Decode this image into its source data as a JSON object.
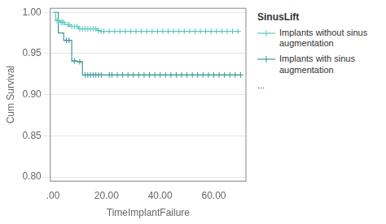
{
  "chart_data": {
    "type": "step",
    "xlabel": "TimeImplantFailure",
    "ylabel": "Cum Survival",
    "legend_title": "SinusLift",
    "legend_note": "...",
    "legend": "right",
    "grid": "y",
    "xlim": [
      -1,
      72
    ],
    "ylim": [
      0.795,
      1.005
    ],
    "xticks": [
      {
        "value": 0.0,
        "label": ".00"
      },
      {
        "value": 20.0,
        "label": "20.00"
      },
      {
        "value": 40.0,
        "label": "40.00"
      },
      {
        "value": 60.0,
        "label": "60.00"
      }
    ],
    "yticks": [
      {
        "value": 0.8,
        "label": "0.80"
      },
      {
        "value": 0.85,
        "label": "0.85"
      },
      {
        "value": 0.9,
        "label": "0.90"
      },
      {
        "value": 0.95,
        "label": "0.95"
      },
      {
        "value": 1.0,
        "label": "1.00"
      }
    ],
    "series": [
      {
        "name": "Implants without sinus\naugmentation",
        "color": "#5bc8c0",
        "marker": "plus",
        "x": [
          0,
          1.0,
          1.0,
          2.5,
          2.5,
          4.5,
          4.5,
          6.5,
          6.5,
          9.5,
          9.5,
          16.5,
          16.5,
          17.5,
          17.5,
          19.5,
          19.5,
          70.0
        ],
        "values": [
          1.0,
          1.0,
          0.99,
          0.99,
          0.988,
          0.988,
          0.985,
          0.985,
          0.983,
          0.983,
          0.98,
          0.98,
          0.978,
          0.978,
          0.977,
          0.977,
          0.977,
          0.977
        ],
        "censor_x": [
          1.5,
          2.0,
          3.0,
          3.5,
          4.0,
          5.5,
          6.0,
          7.0,
          8.0,
          9.0,
          10.0,
          11.0,
          12.0,
          13.0,
          14.0,
          15.0,
          16.0,
          17.0,
          18.0,
          19.0,
          21.0,
          23.0,
          25.0,
          27.0,
          29.0,
          31.0,
          33.0,
          35.0,
          37.0,
          39.0,
          41.0,
          43.0,
          45.0,
          47.0,
          49.0,
          51.0,
          53.0,
          55.0,
          57.0,
          59.0,
          61.0,
          63.0,
          65.0,
          67.0,
          69.0
        ],
        "censor_values": [
          0.99,
          0.99,
          0.988,
          0.988,
          0.988,
          0.985,
          0.985,
          0.983,
          0.983,
          0.983,
          0.98,
          0.98,
          0.98,
          0.98,
          0.98,
          0.98,
          0.98,
          0.978,
          0.977,
          0.977,
          0.977,
          0.977,
          0.977,
          0.977,
          0.977,
          0.977,
          0.977,
          0.977,
          0.977,
          0.977,
          0.977,
          0.977,
          0.977,
          0.977,
          0.977,
          0.977,
          0.977,
          0.977,
          0.977,
          0.977,
          0.977,
          0.977,
          0.977,
          0.977,
          0.977
        ]
      },
      {
        "name": "Implants with sinus\naugmentation",
        "color": "#3a9990",
        "marker": "plus",
        "x": [
          0,
          2.0,
          2.0,
          4.0,
          4.0,
          7.0,
          7.0,
          9.0,
          9.0,
          11.0,
          11.0,
          20.0,
          20.0,
          70.0
        ],
        "values": [
          1.0,
          1.0,
          0.975,
          0.975,
          0.966,
          0.966,
          0.941,
          0.941,
          0.94,
          0.94,
          0.924,
          0.924,
          0.924,
          0.924
        ],
        "censor_x": [
          5.0,
          6.0,
          8.0,
          10.0,
          12.0,
          13.0,
          14.0,
          15.0,
          16.0,
          17.0,
          18.0,
          21.0,
          22.0,
          24.0,
          26.0,
          28.0,
          30.0,
          32.0,
          34.0,
          36.0,
          38.0,
          40.0,
          42.0,
          44.0,
          46.0,
          48.0,
          50.0,
          52.0,
          54.0,
          56.0,
          58.0,
          60.0,
          62.0,
          64.0,
          66.0,
          68.0,
          70.0
        ],
        "censor_values": [
          0.966,
          0.966,
          0.941,
          0.94,
          0.924,
          0.924,
          0.924,
          0.924,
          0.924,
          0.924,
          0.924,
          0.924,
          0.924,
          0.924,
          0.924,
          0.924,
          0.924,
          0.924,
          0.924,
          0.924,
          0.924,
          0.924,
          0.924,
          0.924,
          0.924,
          0.924,
          0.924,
          0.924,
          0.924,
          0.924,
          0.924,
          0.924,
          0.924,
          0.924,
          0.924,
          0.924,
          0.924
        ]
      }
    ]
  }
}
